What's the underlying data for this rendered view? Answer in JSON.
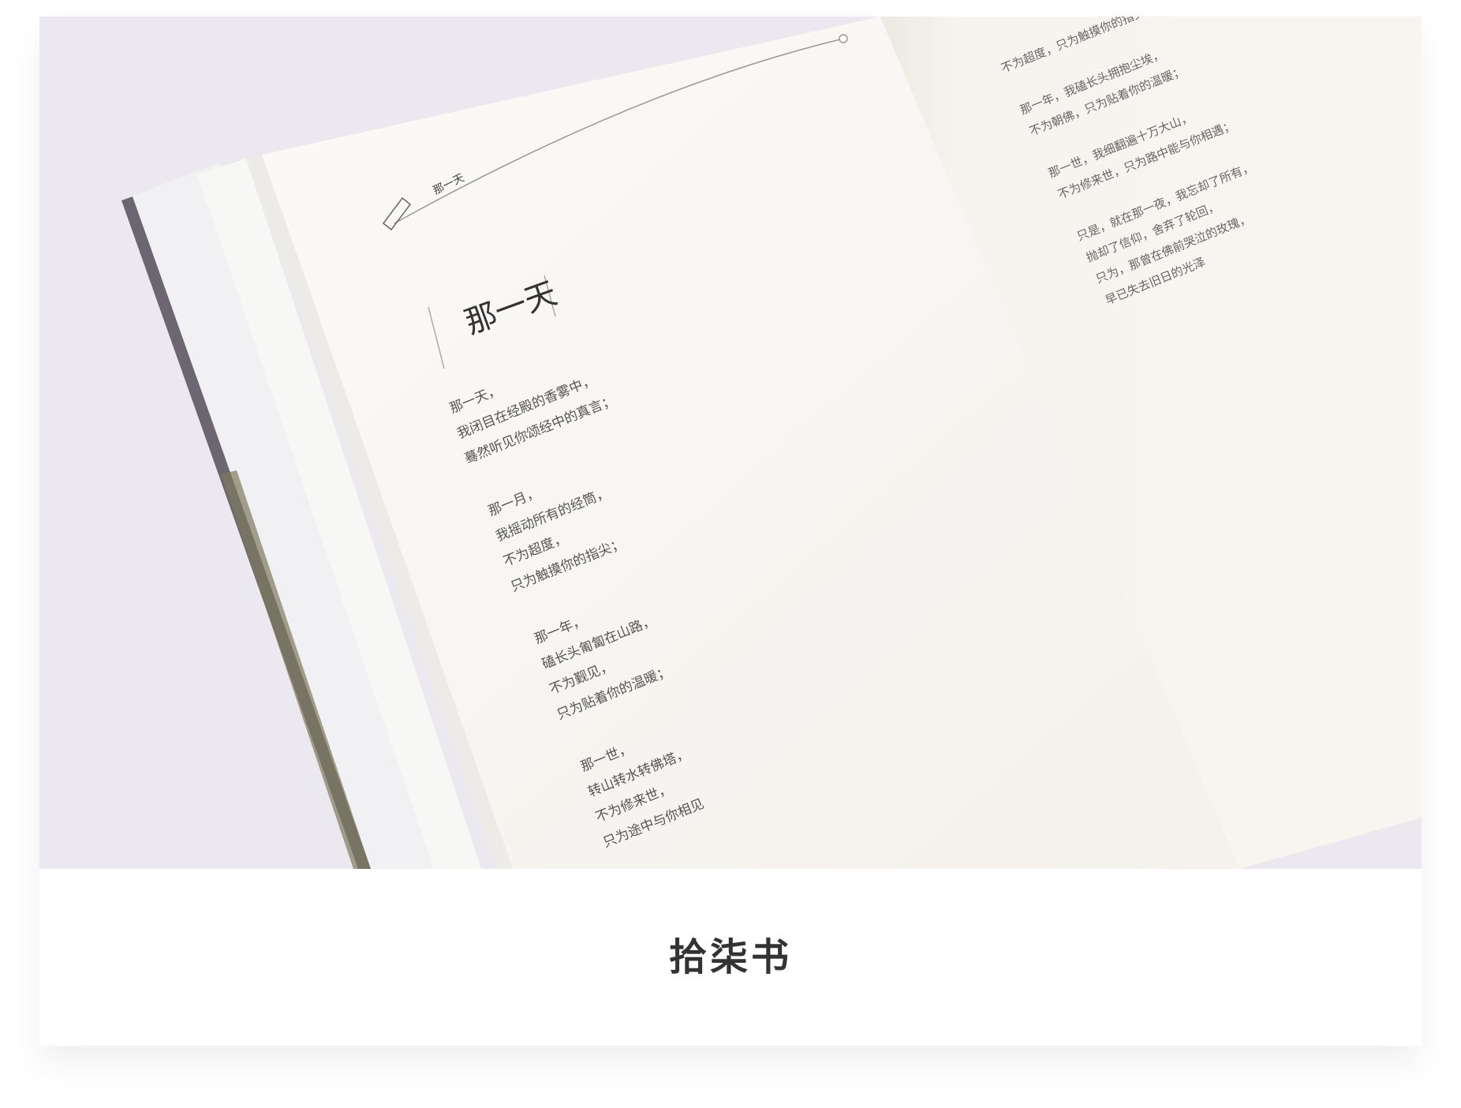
{
  "photo": {
    "left_page": {
      "heading": "那一天",
      "title": "那一天",
      "stanzas": [
        [
          "那一天，",
          "我闭目在经殿的香雾中，",
          "蓦然听见你颂经中的真言；"
        ],
        [
          "那一月，",
          "我摇动所有的经筒，",
          "不为超度，",
          "只为触摸你的指尖；"
        ],
        [
          "那一年，",
          "磕长头匍匐在山路，",
          "不为觐见，",
          "只为贴着你的温暖；"
        ],
        [
          "那一世，",
          "转山转水转佛塔，",
          "不为修来世，",
          "只为途中与你相见"
        ]
      ]
    },
    "right_page": {
      "stanzas": [
        [
          "不为超度，只为触摸你的指尖；"
        ],
        [
          "那一年，我磕长头拥抱尘埃，",
          "不为朝佛，只为贴着你的温暖；"
        ],
        [
          "那一世，我细翻遍十万大山，",
          "不为修来世，只为路中能与你相遇；"
        ],
        [
          "只是，就在那一夜，我忘却了所有，",
          "抛却了信仰，舍弃了轮回，",
          "只为，那曾在佛前哭泣的玫瑰，",
          "早已失去旧日的光泽"
        ]
      ]
    }
  },
  "caption": "拾柒书"
}
